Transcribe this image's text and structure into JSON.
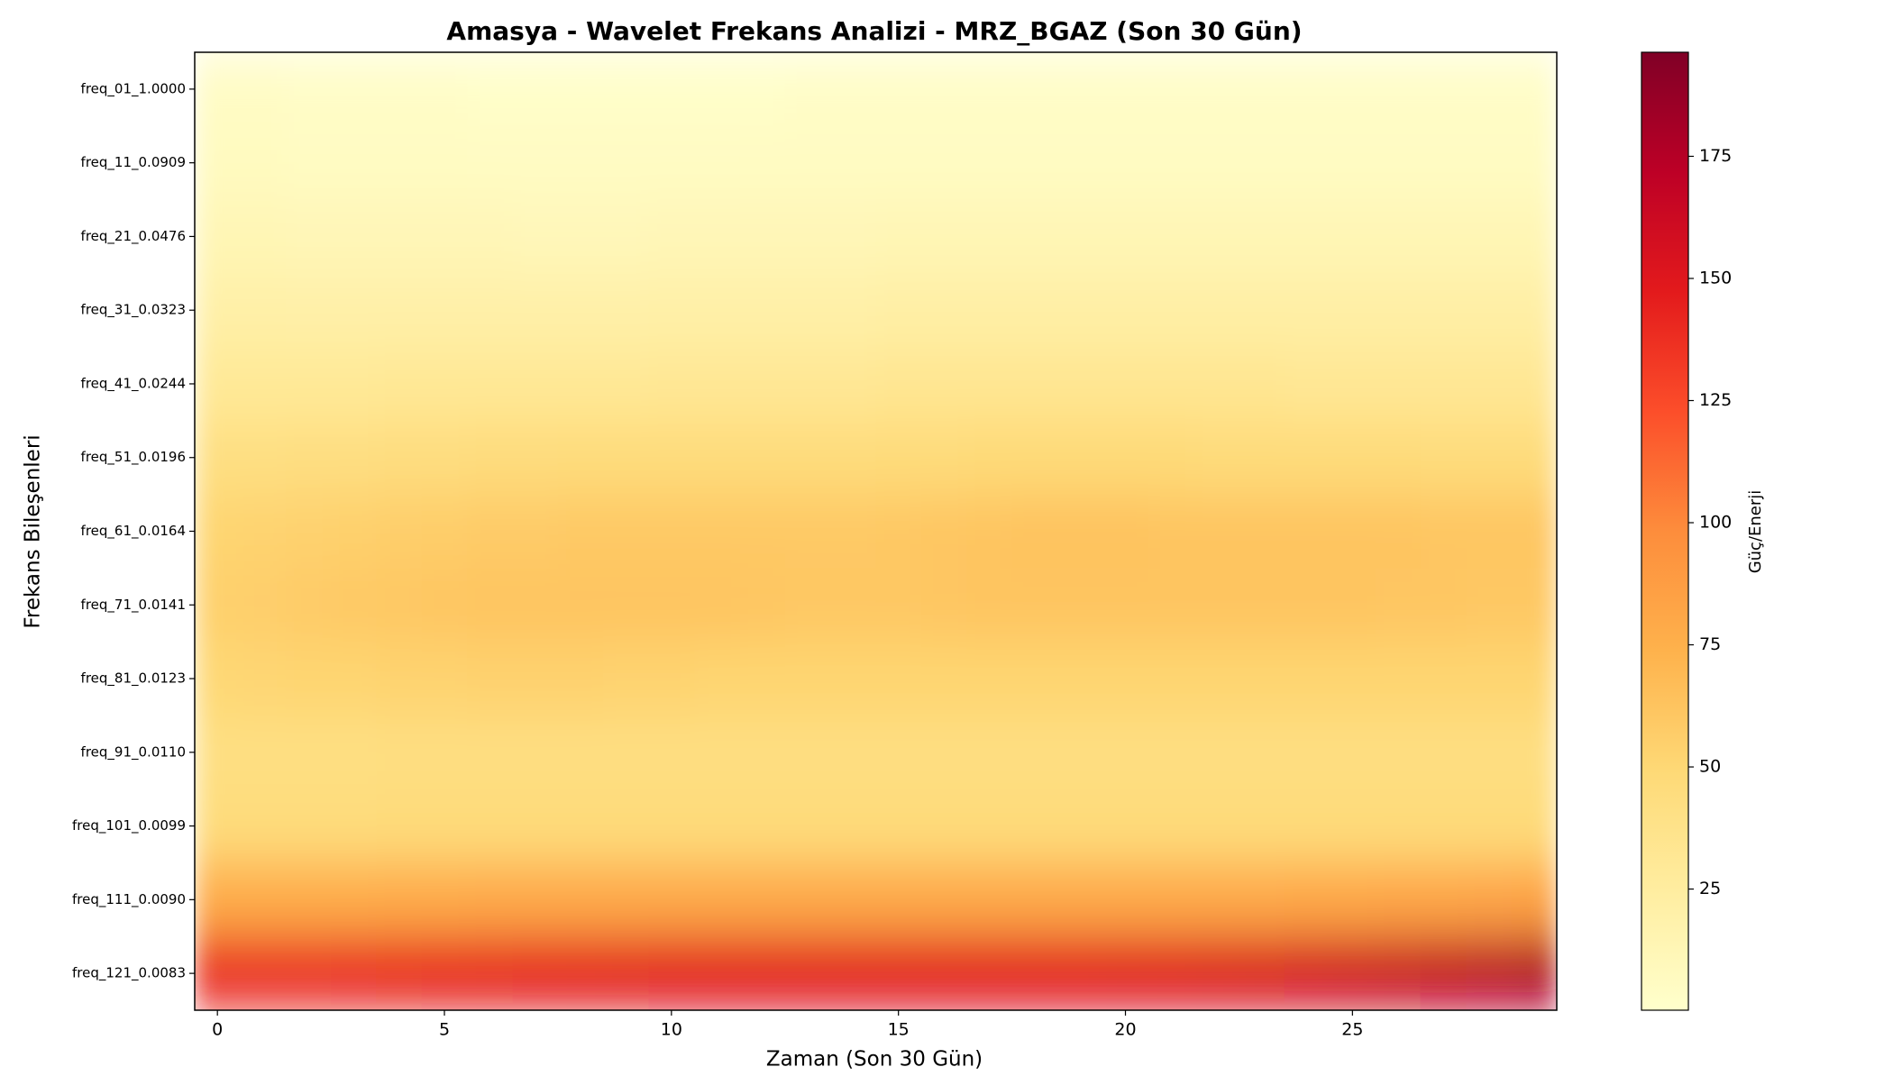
{
  "chart_data": {
    "type": "heatmap",
    "title": "Amasya - Wavelet Frekans Analizi - MRZ_BGAZ (Son 30 Gün)",
    "x_label": "Zaman (Son 30 Gün)",
    "y_label": "Frekans Bileşenleri",
    "colorbar_label": "Güç/Enerji",
    "colormap": "YlOrRd",
    "x": [
      0,
      1,
      2,
      3,
      4,
      5,
      6,
      7,
      8,
      9,
      10,
      11,
      12,
      13,
      14,
      15,
      16,
      17,
      18,
      19,
      20,
      21,
      22,
      23,
      24,
      25,
      26,
      27,
      28,
      29
    ],
    "xlim": [
      -0.5,
      29.5
    ],
    "xticks": [
      0,
      5,
      10,
      15,
      20,
      25
    ],
    "y": [
      "freq_01_1.0000",
      "freq_11_0.0909",
      "freq_21_0.0476",
      "freq_31_0.0323",
      "freq_41_0.0244",
      "freq_51_0.0196",
      "freq_61_0.0164",
      "freq_71_0.0141",
      "freq_81_0.0123",
      "freq_91_0.0110",
      "freq_101_0.0099",
      "freq_111_0.0090",
      "freq_121_0.0083"
    ],
    "clim": [
      0.2,
      196.3
    ],
    "cticks": [
      25,
      50,
      75,
      100,
      125,
      150,
      175
    ],
    "values": [
      [
        4,
        4,
        3,
        3,
        3,
        3,
        2,
        2,
        2,
        2,
        2,
        2,
        2,
        3,
        3,
        3,
        3,
        3,
        3,
        3,
        3,
        3,
        3,
        3,
        3,
        3,
        3,
        3,
        3,
        3
      ],
      [
        7,
        7,
        6,
        6,
        6,
        6,
        5,
        5,
        5,
        5,
        5,
        5,
        6,
        6,
        6,
        6,
        6,
        6,
        6,
        6,
        6,
        6,
        6,
        6,
        6,
        6,
        6,
        6,
        6,
        6
      ],
      [
        13,
        13,
        12,
        12,
        12,
        12,
        12,
        11,
        11,
        11,
        12,
        12,
        12,
        12,
        12,
        13,
        13,
        13,
        13,
        13,
        13,
        13,
        13,
        13,
        13,
        13,
        13,
        13,
        13,
        13
      ],
      [
        21,
        21,
        20,
        20,
        20,
        20,
        20,
        20,
        20,
        20,
        21,
        21,
        21,
        21,
        21,
        22,
        22,
        22,
        22,
        22,
        22,
        22,
        22,
        22,
        22,
        22,
        22,
        22,
        22,
        22
      ],
      [
        30,
        30,
        30,
        30,
        31,
        31,
        31,
        31,
        31,
        31,
        32,
        32,
        32,
        32,
        32,
        33,
        33,
        33,
        33,
        33,
        33,
        33,
        33,
        33,
        32,
        32,
        32,
        32,
        32,
        32
      ],
      [
        42,
        42,
        43,
        43,
        44,
        44,
        45,
        45,
        46,
        46,
        46,
        46,
        46,
        46,
        46,
        47,
        47,
        48,
        48,
        48,
        48,
        48,
        47,
        47,
        47,
        47,
        47,
        46,
        46,
        46
      ],
      [
        52,
        53,
        54,
        55,
        56,
        57,
        58,
        58,
        59,
        59,
        59,
        59,
        59,
        59,
        59,
        60,
        61,
        62,
        63,
        63,
        63,
        62,
        62,
        62,
        62,
        62,
        62,
        61,
        61,
        61
      ],
      [
        55,
        56,
        58,
        59,
        60,
        61,
        62,
        62,
        62,
        62,
        62,
        62,
        61,
        60,
        60,
        60,
        61,
        62,
        62,
        62,
        62,
        62,
        62,
        62,
        62,
        62,
        61,
        61,
        60,
        60
      ],
      [
        50,
        51,
        52,
        52,
        53,
        53,
        54,
        54,
        54,
        53,
        53,
        52,
        52,
        52,
        52,
        52,
        52,
        52,
        52,
        52,
        52,
        52,
        52,
        52,
        52,
        52,
        52,
        52,
        52,
        52
      ],
      [
        42,
        42,
        42,
        42,
        43,
        43,
        43,
        43,
        43,
        43,
        43,
        43,
        43,
        43,
        43,
        43,
        43,
        43,
        43,
        43,
        43,
        43,
        43,
        43,
        43,
        43,
        43,
        43,
        43,
        43
      ],
      [
        46,
        46,
        46,
        46,
        47,
        47,
        47,
        47,
        47,
        47,
        47,
        47,
        47,
        47,
        47,
        47,
        47,
        47,
        47,
        47,
        47,
        47,
        47,
        47,
        47,
        47,
        47,
        47,
        47,
        47
      ],
      [
        78,
        78,
        78,
        78,
        79,
        79,
        80,
        80,
        80,
        80,
        80,
        80,
        80,
        80,
        80,
        80,
        80,
        80,
        80,
        80,
        80,
        80,
        80,
        80,
        81,
        81,
        82,
        82,
        83,
        84
      ],
      [
        140,
        140,
        140,
        141,
        142,
        143,
        144,
        145,
        146,
        147,
        148,
        148,
        148,
        148,
        148,
        148,
        148,
        148,
        148,
        148,
        149,
        150,
        152,
        154,
        157,
        160,
        164,
        168,
        172,
        176
      ]
    ]
  }
}
